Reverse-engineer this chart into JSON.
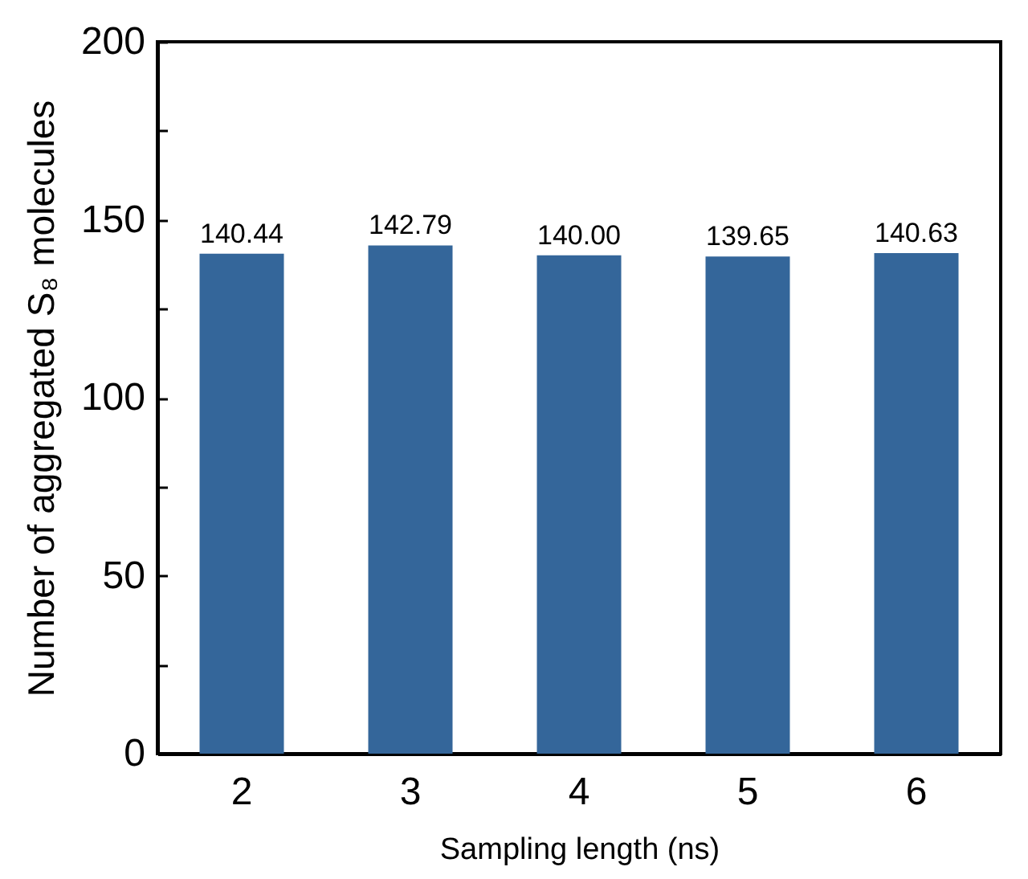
{
  "chart_data": {
    "type": "bar",
    "xlabel": "Sampling length (ns)",
    "ylabel": "Number of aggregated S₈ molecules",
    "categories": [
      "2",
      "3",
      "4",
      "5",
      "6"
    ],
    "values": [
      140.44,
      142.79,
      140.0,
      139.65,
      140.63
    ],
    "value_labels": [
      "140.44",
      "142.79",
      "140.00",
      "139.65",
      "140.63"
    ],
    "color": "#34669a",
    "ylim": [
      0,
      200
    ],
    "yticks": [
      0,
      {
        "value": 25,
        "label": null
      },
      50,
      {
        "value": 75,
        "label": null
      },
      100,
      {
        "value": 125,
        "label": null
      },
      150,
      {
        "value": 175,
        "label": null
      },
      200
    ],
    "grid": false
  }
}
